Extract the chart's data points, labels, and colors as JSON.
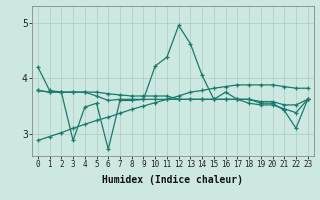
{
  "xlabel": "Humidex (Indice chaleur)",
  "xlim": [
    -0.5,
    23.5
  ],
  "ylim": [
    2.6,
    5.3
  ],
  "yticks": [
    3,
    4,
    5
  ],
  "xticks": [
    0,
    1,
    2,
    3,
    4,
    5,
    6,
    7,
    8,
    9,
    10,
    11,
    12,
    13,
    14,
    15,
    16,
    17,
    18,
    19,
    20,
    21,
    22,
    23
  ],
  "bg_color": "#cce8e0",
  "grid_color": "#aaccC4",
  "line_color": "#1a7a6e",
  "lines": [
    [
      4.2,
      3.78,
      3.75,
      2.88,
      3.48,
      3.55,
      2.72,
      3.6,
      3.6,
      3.62,
      4.22,
      4.38,
      4.95,
      4.62,
      4.05,
      3.62,
      3.75,
      3.62,
      3.62,
      3.55,
      3.55,
      3.42,
      3.1,
      3.62
    ],
    [
      3.78,
      3.75,
      3.75,
      3.75,
      3.75,
      3.75,
      3.72,
      3.7,
      3.68,
      3.68,
      3.68,
      3.68,
      3.62,
      3.62,
      3.62,
      3.62,
      3.62,
      3.62,
      3.62,
      3.58,
      3.58,
      3.52,
      3.52,
      3.62
    ],
    [
      3.78,
      3.75,
      3.75,
      3.75,
      3.75,
      3.68,
      3.6,
      3.62,
      3.62,
      3.62,
      3.62,
      3.62,
      3.62,
      3.62,
      3.62,
      3.62,
      3.62,
      3.62,
      3.55,
      3.52,
      3.52,
      3.45,
      3.38,
      3.62
    ],
    [
      2.88,
      2.95,
      3.02,
      3.1,
      3.17,
      3.24,
      3.3,
      3.37,
      3.44,
      3.5,
      3.56,
      3.62,
      3.68,
      3.75,
      3.78,
      3.82,
      3.85,
      3.88,
      3.88,
      3.88,
      3.88,
      3.85,
      3.82,
      3.82
    ]
  ]
}
